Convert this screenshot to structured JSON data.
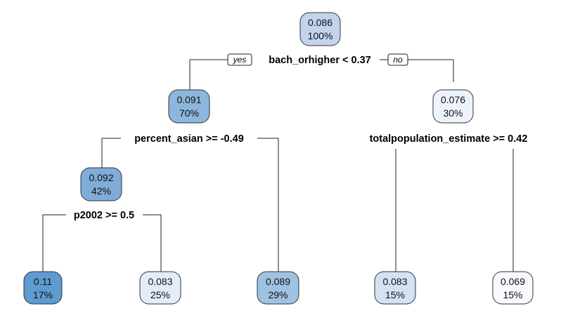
{
  "tree": {
    "branch_labels": {
      "yes": "yes",
      "no": "no"
    },
    "nodes": [
      {
        "id": "root",
        "value": "0.086",
        "percent": "100%",
        "fill": "#c2d4ec",
        "split": "bach_orhigher < 0.37"
      },
      {
        "id": "n2",
        "value": "0.091",
        "percent": "70%",
        "fill": "#8cb6dc",
        "split": "percent_asian >= -0.49"
      },
      {
        "id": "n3",
        "value": "0.076",
        "percent": "30%",
        "fill": "#edf3fb",
        "split": "totalpopulation_estimate >= 0.42"
      },
      {
        "id": "n4",
        "value": "0.092",
        "percent": "42%",
        "fill": "#7fadd8",
        "split": "p2002 >= 0.5"
      },
      {
        "id": "leaf1",
        "value": "0.11",
        "percent": "17%",
        "fill": "#5e9bd0"
      },
      {
        "id": "leaf2",
        "value": "0.083",
        "percent": "25%",
        "fill": "#e3edf8"
      },
      {
        "id": "leaf3",
        "value": "0.089",
        "percent": "29%",
        "fill": "#9fc2e3"
      },
      {
        "id": "leaf4",
        "value": "0.083",
        "percent": "15%",
        "fill": "#d2e2f3"
      },
      {
        "id": "leaf5",
        "value": "0.069",
        "percent": "15%",
        "fill": "#f8fafd"
      }
    ]
  }
}
